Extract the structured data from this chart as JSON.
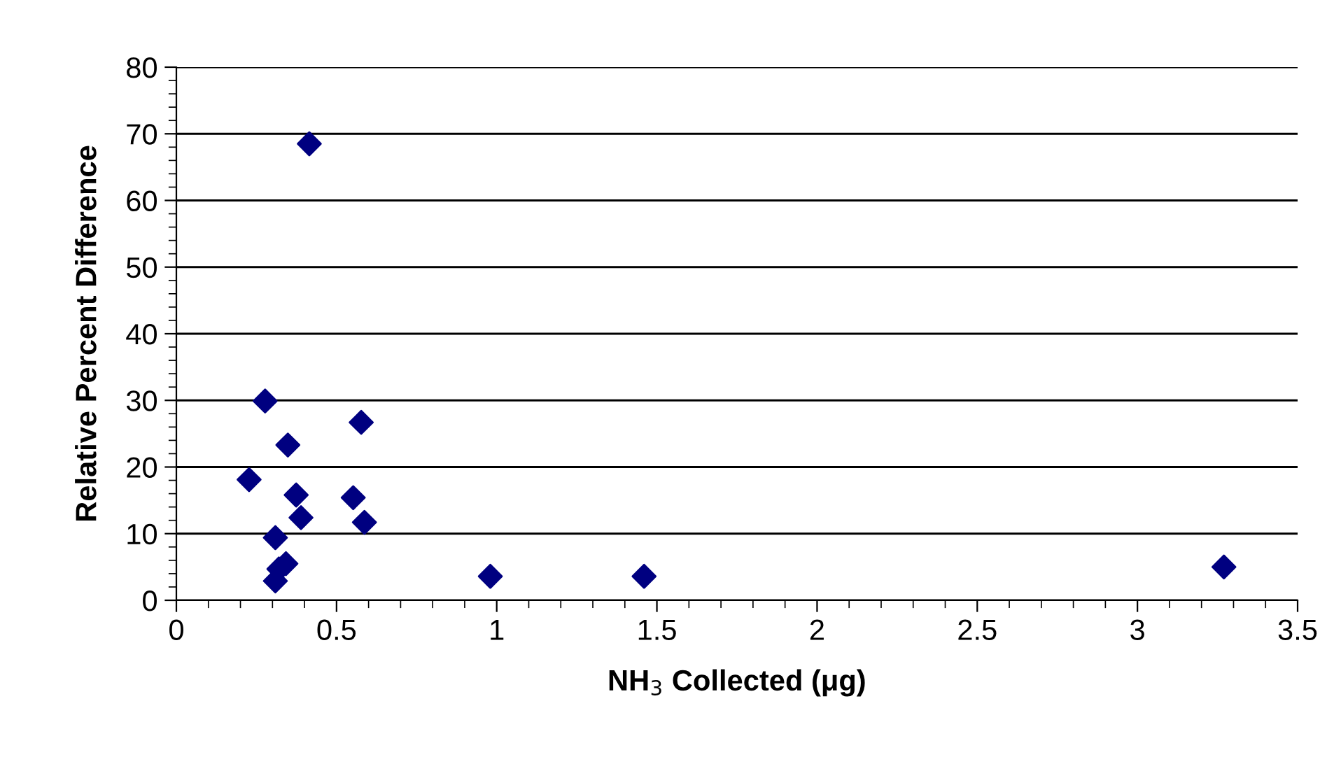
{
  "chart_data": {
    "type": "scatter",
    "xlabel": "NH$_{3}$ Collected (μg)",
    "ylabel": "Relative Percent Difference",
    "x": [
      0.415,
      0.277,
      0.577,
      0.348,
      0.227,
      0.374,
      0.552,
      0.389,
      0.587,
      0.309,
      0.342,
      0.32,
      0.309,
      0.98,
      1.46,
      3.27
    ],
    "series": [
      {
        "color": "#000080",
        "values": [
          68.5,
          29.9,
          26.7,
          23.3,
          18.1,
          15.8,
          15.4,
          12.4,
          11.7,
          9.4,
          5.5,
          4.7,
          2.9,
          3.6,
          3.6,
          5.0
        ]
      }
    ],
    "marker": "diamond",
    "xlim": [
      0,
      3.5
    ],
    "ylim": [
      0,
      80
    ],
    "xticks": [
      0,
      0.5,
      1,
      1.5,
      2,
      2.5,
      3,
      3.5
    ],
    "yticks": [
      0,
      10,
      20,
      30,
      40,
      50,
      60,
      70,
      80
    ],
    "grid": "y",
    "legend": false
  }
}
